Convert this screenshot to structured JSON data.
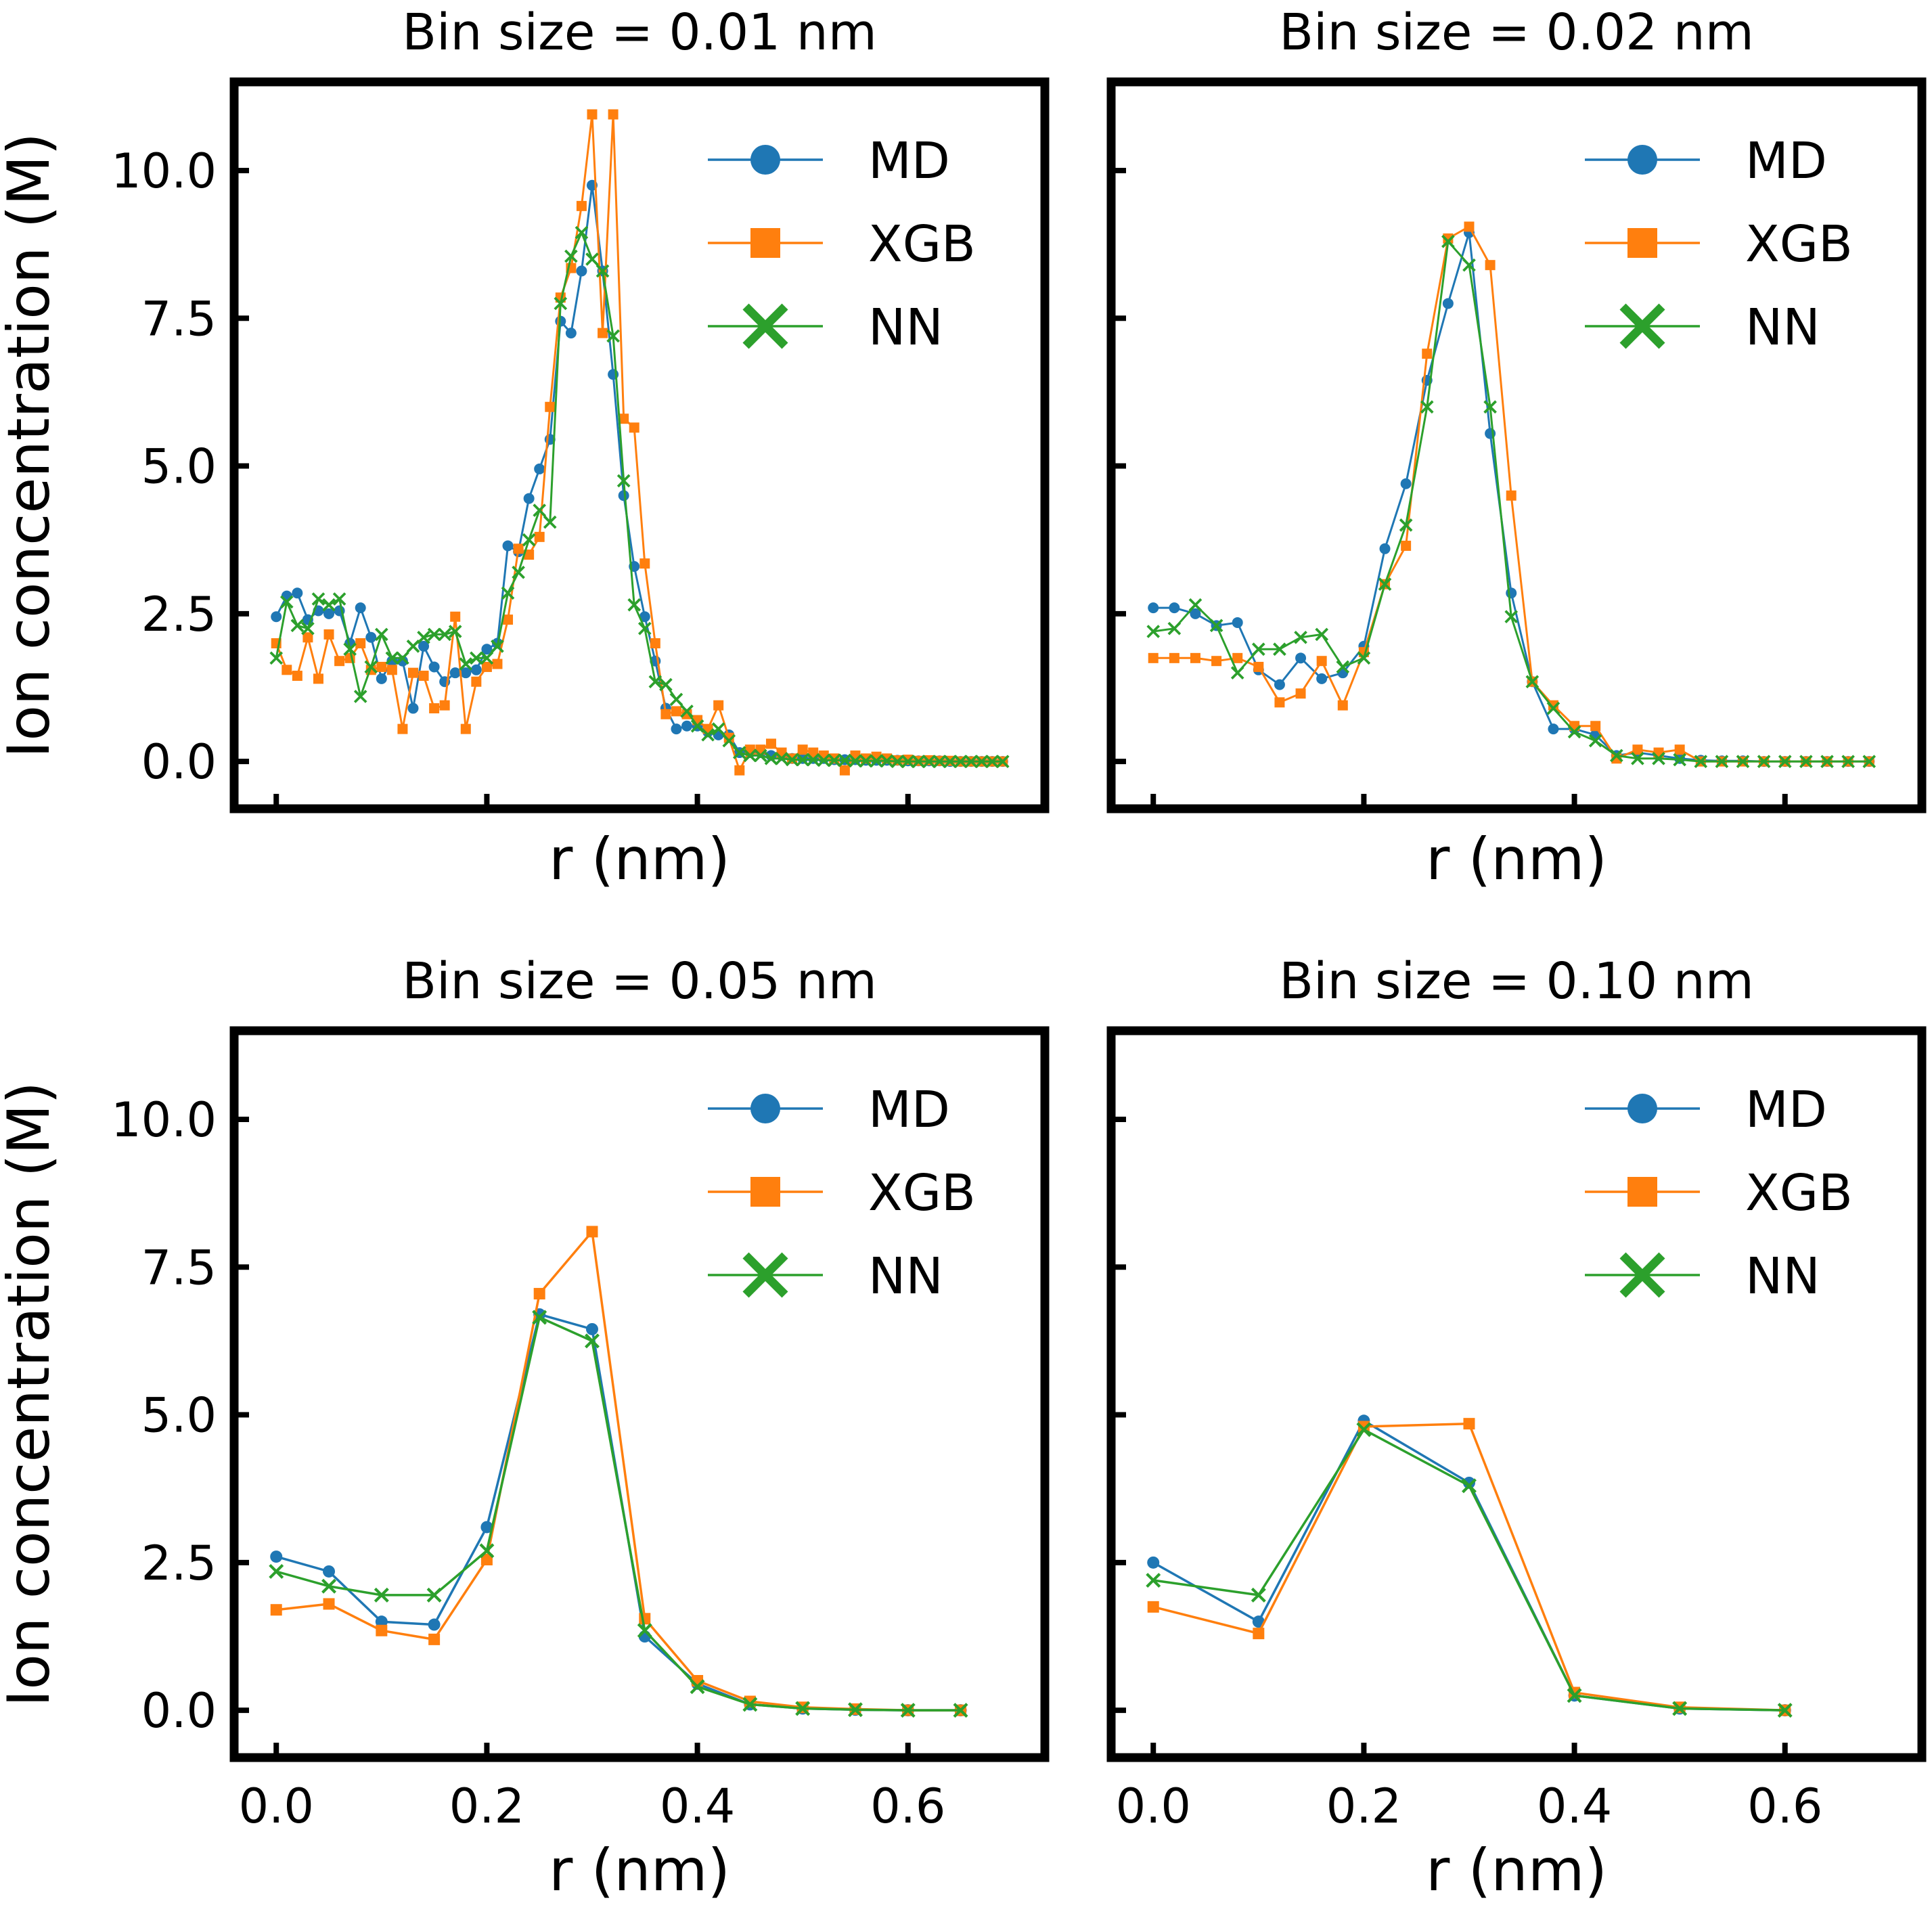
{
  "colors": {
    "MD": "#1f77b4",
    "XGB": "#ff7f0e",
    "NN": "#2ca02c"
  },
  "chart_data": [
    {
      "type": "line",
      "title": "Bin size = 0.01 nm",
      "xlabel": "r (nm)",
      "ylabel": "Ion concentration (M)",
      "xlim": [
        -0.04,
        0.73
      ],
      "ylim": [
        -0.8,
        11.5
      ],
      "xticks": [
        0.0,
        0.2,
        0.4,
        0.6
      ],
      "xticklabels": [
        "0.0",
        "0.2",
        "0.4",
        "0.6"
      ],
      "show_xticklabels": false,
      "yticks": [
        0.0,
        2.5,
        5.0,
        7.5,
        10.0
      ],
      "yticklabels": [
        "0.0",
        "2.5",
        "5.0",
        "7.5",
        "10.0"
      ],
      "show_yticklabels": true,
      "show_ylabel": true,
      "legend": "top-right",
      "x": [
        0.0,
        0.01,
        0.02,
        0.03,
        0.04,
        0.05,
        0.06,
        0.07,
        0.08,
        0.09,
        0.1,
        0.11,
        0.12,
        0.13,
        0.14,
        0.15,
        0.16,
        0.17,
        0.18,
        0.19,
        0.2,
        0.21,
        0.22,
        0.23,
        0.24,
        0.25,
        0.26,
        0.27,
        0.28,
        0.29,
        0.3,
        0.31,
        0.32,
        0.33,
        0.34,
        0.35,
        0.36,
        0.37,
        0.38,
        0.39,
        0.4,
        0.41,
        0.42,
        0.43,
        0.44,
        0.45,
        0.46,
        0.47,
        0.48,
        0.49,
        0.5,
        0.51,
        0.52,
        0.53,
        0.54,
        0.55,
        0.56,
        0.57,
        0.58,
        0.59,
        0.6,
        0.61,
        0.62,
        0.63,
        0.64,
        0.65,
        0.66,
        0.67,
        0.68,
        0.69
      ],
      "series": [
        {
          "name": "MD",
          "marker": "circle",
          "values": [
            2.45,
            2.8,
            2.85,
            2.4,
            2.55,
            2.5,
            2.55,
            2.0,
            2.6,
            2.1,
            1.4,
            1.7,
            1.7,
            0.9,
            1.95,
            1.6,
            1.35,
            1.5,
            1.5,
            1.55,
            1.9,
            2.0,
            3.65,
            3.55,
            4.45,
            4.95,
            5.45,
            7.45,
            7.25,
            8.3,
            9.75,
            8.3,
            6.55,
            4.5,
            3.3,
            2.45,
            1.7,
            0.9,
            0.55,
            0.6,
            0.6,
            0.5,
            0.45,
            0.45,
            0.15,
            0.15,
            0.15,
            0.1,
            0.1,
            0.05,
            0.05,
            0.05,
            0.05,
            0.03,
            0.03,
            0.03,
            0.02,
            0.02,
            0.02,
            0.02,
            0.01,
            0.01,
            0.01,
            0.01,
            0.0,
            0.0,
            0.0,
            0.0,
            0.0,
            0.0
          ]
        },
        {
          "name": "XGB",
          "marker": "square",
          "values": [
            2.0,
            1.55,
            1.45,
            2.1,
            1.4,
            2.15,
            1.7,
            1.75,
            2.0,
            1.55,
            1.6,
            1.55,
            0.55,
            1.5,
            1.45,
            0.9,
            0.95,
            2.45,
            0.55,
            1.35,
            1.6,
            1.65,
            2.4,
            3.6,
            3.5,
            3.8,
            6.0,
            7.85,
            8.35,
            9.4,
            10.95,
            7.25,
            10.95,
            5.8,
            5.65,
            3.35,
            2.0,
            0.8,
            0.85,
            0.8,
            0.7,
            0.55,
            0.95,
            0.4,
            -0.15,
            0.2,
            0.2,
            0.3,
            0.15,
            0.05,
            0.2,
            0.15,
            0.1,
            0.05,
            -0.15,
            0.1,
            0.05,
            0.08,
            0.05,
            0.02,
            0.03,
            0.01,
            0.02,
            0.01,
            0.01,
            0.0,
            0.0,
            0.0,
            0.0,
            0.0
          ]
        },
        {
          "name": "NN",
          "marker": "x",
          "values": [
            1.75,
            2.7,
            2.3,
            2.25,
            2.75,
            2.65,
            2.75,
            1.9,
            1.1,
            1.6,
            2.15,
            1.75,
            1.75,
            1.95,
            2.1,
            2.15,
            2.15,
            2.2,
            1.65,
            1.75,
            1.75,
            1.95,
            2.85,
            3.2,
            3.75,
            4.25,
            4.05,
            7.75,
            8.55,
            8.95,
            8.5,
            8.3,
            7.2,
            4.75,
            2.65,
            2.25,
            1.35,
            1.3,
            1.05,
            0.85,
            0.6,
            0.45,
            0.55,
            0.35,
            0.15,
            0.1,
            0.1,
            0.05,
            0.05,
            0.03,
            0.03,
            0.03,
            0.02,
            0.02,
            0.02,
            0.01,
            0.01,
            0.01,
            0.01,
            0.0,
            0.0,
            0.0,
            0.0,
            0.0,
            0.0,
            0.0,
            0.0,
            0.0,
            0.0,
            0.0
          ]
        }
      ]
    },
    {
      "type": "line",
      "title": "Bin size = 0.02 nm",
      "xlabel": "r (nm)",
      "ylabel": "",
      "xlim": [
        -0.04,
        0.73
      ],
      "ylim": [
        -0.8,
        11.5
      ],
      "xticks": [
        0.0,
        0.2,
        0.4,
        0.6
      ],
      "xticklabels": [
        "0.0",
        "0.2",
        "0.4",
        "0.6"
      ],
      "show_xticklabels": false,
      "yticks": [
        0.0,
        2.5,
        5.0,
        7.5,
        10.0
      ],
      "yticklabels": [
        "0.0",
        "2.5",
        "5.0",
        "7.5",
        "10.0"
      ],
      "show_yticklabels": false,
      "show_ylabel": false,
      "legend": "top-right",
      "x": [
        0.0,
        0.02,
        0.04,
        0.06,
        0.08,
        0.1,
        0.12,
        0.14,
        0.16,
        0.18,
        0.2,
        0.22,
        0.24,
        0.26,
        0.28,
        0.3,
        0.32,
        0.34,
        0.36,
        0.38,
        0.4,
        0.42,
        0.44,
        0.46,
        0.48,
        0.5,
        0.52,
        0.54,
        0.56,
        0.58,
        0.6,
        0.62,
        0.64,
        0.66,
        0.68
      ],
      "series": [
        {
          "name": "MD",
          "marker": "circle",
          "values": [
            2.6,
            2.6,
            2.5,
            2.3,
            2.35,
            1.55,
            1.3,
            1.75,
            1.4,
            1.5,
            1.95,
            3.6,
            4.7,
            6.45,
            7.75,
            8.95,
            5.55,
            2.85,
            1.35,
            0.55,
            0.55,
            0.45,
            0.1,
            0.15,
            0.1,
            0.05,
            0.02,
            0.01,
            0.01,
            0.0,
            0.0,
            0.0,
            0.0,
            0.0,
            0.0
          ]
        },
        {
          "name": "XGB",
          "marker": "square",
          "values": [
            1.75,
            1.75,
            1.75,
            1.7,
            1.75,
            1.6,
            1.0,
            1.15,
            1.7,
            0.95,
            1.85,
            3.0,
            3.65,
            6.9,
            8.85,
            9.05,
            8.4,
            4.5,
            1.35,
            0.95,
            0.6,
            0.6,
            0.05,
            0.2,
            0.15,
            0.2,
            0.0,
            0.0,
            0.0,
            0.0,
            0.0,
            0.0,
            0.0,
            0.0,
            0.0
          ]
        },
        {
          "name": "NN",
          "marker": "x",
          "values": [
            2.2,
            2.25,
            2.65,
            2.3,
            1.5,
            1.9,
            1.9,
            2.1,
            2.15,
            1.6,
            1.75,
            3.0,
            4.0,
            6.0,
            8.8,
            8.4,
            6.0,
            2.45,
            1.35,
            0.9,
            0.5,
            0.35,
            0.1,
            0.05,
            0.05,
            0.03,
            0.0,
            0.0,
            0.0,
            0.0,
            0.0,
            0.0,
            0.0,
            0.0,
            0.0
          ]
        }
      ]
    },
    {
      "type": "line",
      "title": "Bin size = 0.05 nm",
      "xlabel": "r (nm)",
      "ylabel": "Ion concentration (M)",
      "xlim": [
        -0.04,
        0.73
      ],
      "ylim": [
        -0.8,
        11.5
      ],
      "xticks": [
        0.0,
        0.2,
        0.4,
        0.6
      ],
      "xticklabels": [
        "0.0",
        "0.2",
        "0.4",
        "0.6"
      ],
      "show_xticklabels": true,
      "yticks": [
        0.0,
        2.5,
        5.0,
        7.5,
        10.0
      ],
      "yticklabels": [
        "0.0",
        "2.5",
        "5.0",
        "7.5",
        "10.0"
      ],
      "show_yticklabels": true,
      "show_ylabel": true,
      "legend": "top-right",
      "x": [
        0.0,
        0.05,
        0.1,
        0.15,
        0.2,
        0.25,
        0.3,
        0.35,
        0.4,
        0.45,
        0.5,
        0.55,
        0.6,
        0.65
      ],
      "series": [
        {
          "name": "MD",
          "marker": "circle",
          "values": [
            2.6,
            2.35,
            1.5,
            1.45,
            3.1,
            6.7,
            6.45,
            1.25,
            0.45,
            0.1,
            0.03,
            0.01,
            0.0,
            0.0
          ]
        },
        {
          "name": "XGB",
          "marker": "square",
          "values": [
            1.7,
            1.8,
            1.35,
            1.2,
            2.55,
            7.05,
            8.1,
            1.55,
            0.5,
            0.15,
            0.05,
            0.02,
            0.0,
            0.0
          ]
        },
        {
          "name": "NN",
          "marker": "x",
          "values": [
            2.35,
            2.1,
            1.95,
            1.95,
            2.7,
            6.65,
            6.25,
            1.35,
            0.4,
            0.1,
            0.03,
            0.01,
            0.0,
            0.0
          ]
        }
      ]
    },
    {
      "type": "line",
      "title": "Bin size = 0.10 nm",
      "xlabel": "r (nm)",
      "ylabel": "",
      "xlim": [
        -0.04,
        0.73
      ],
      "ylim": [
        -0.8,
        11.5
      ],
      "xticks": [
        0.0,
        0.2,
        0.4,
        0.6
      ],
      "xticklabels": [
        "0.0",
        "0.2",
        "0.4",
        "0.6"
      ],
      "show_xticklabels": true,
      "yticks": [
        0.0,
        2.5,
        5.0,
        7.5,
        10.0
      ],
      "yticklabels": [
        "0.0",
        "2.5",
        "5.0",
        "7.5",
        "10.0"
      ],
      "show_yticklabels": false,
      "show_ylabel": false,
      "legend": "top-right",
      "x": [
        0.0,
        0.1,
        0.2,
        0.3,
        0.4,
        0.5,
        0.6
      ],
      "series": [
        {
          "name": "MD",
          "marker": "circle",
          "values": [
            2.5,
            1.5,
            4.9,
            3.85,
            0.25,
            0.03,
            0.0
          ]
        },
        {
          "name": "XGB",
          "marker": "square",
          "values": [
            1.75,
            1.3,
            4.8,
            4.85,
            0.3,
            0.05,
            0.0
          ]
        },
        {
          "name": "NN",
          "marker": "x",
          "values": [
            2.2,
            1.95,
            4.75,
            3.8,
            0.25,
            0.03,
            0.0
          ]
        }
      ]
    }
  ]
}
